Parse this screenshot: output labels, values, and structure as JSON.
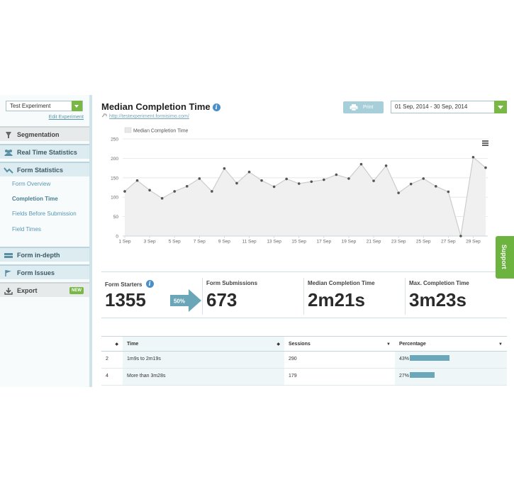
{
  "sidebar": {
    "experiment_select": "Test Experiment",
    "edit_link": "Edit Experiment",
    "items": [
      {
        "label": "Segmentation"
      },
      {
        "label": "Real Time Statistics"
      },
      {
        "label": "Form Statistics"
      },
      {
        "label": "Form in-depth"
      },
      {
        "label": "Form Issues"
      },
      {
        "label": "Export",
        "badge": "NEW"
      }
    ],
    "sub_items": [
      "Form Overview",
      "Completion Time",
      "Fields Before Submission",
      "Field Times"
    ]
  },
  "header": {
    "title": "Median Completion Time",
    "url": "http://testexperiment.formisimo.com/",
    "print_label": "Print",
    "date_range": "01 Sep, 2014 - 30 Sep, 2014"
  },
  "chart_data": {
    "type": "area",
    "legend": [
      "Median Completion Time"
    ],
    "series": [
      {
        "name": "Median Completion Time",
        "values": [
          115,
          143,
          118,
          97,
          115,
          128,
          148,
          115,
          174,
          136,
          165,
          143,
          127,
          147,
          135,
          140,
          145,
          158,
          148,
          185,
          142,
          181,
          111,
          134,
          148,
          128,
          114,
          0,
          203,
          176
        ]
      }
    ],
    "x_tick_labels": [
      "1 Sep",
      "3 Sep",
      "5 Sep",
      "7 Sep",
      "9 Sep",
      "11 Sep",
      "13 Sep",
      "15 Sep",
      "17 Sep",
      "19 Sep",
      "21 Sep",
      "23 Sep",
      "25 Sep",
      "27 Sep",
      "29 Sep"
    ],
    "y_ticks": [
      0,
      50,
      100,
      150,
      200,
      250
    ],
    "ylim": [
      0,
      250
    ],
    "grid": true,
    "legend_position": "top-left",
    "color": "#cccccc"
  },
  "stats": {
    "starters_label": "Form Starters",
    "starters_value": "1355",
    "conversion": "50%",
    "submissions_label": "Form Submissions",
    "submissions_value": "673",
    "median_label": "Median Completion Time",
    "median_value": "2m21s",
    "max_label": "Max. Completion Time",
    "max_value": "3m23s"
  },
  "support_label": "Support",
  "table": {
    "headers": {
      "time": "Time",
      "sessions": "Sessions",
      "percentage": "Percentage"
    },
    "rows": [
      {
        "rank": "2",
        "time": "1m9s to 2m19s",
        "sessions": "290",
        "percentage": "43%",
        "pct_value": 43
      },
      {
        "rank": "4",
        "time": "More than 3m28s",
        "sessions": "179",
        "percentage": "27%",
        "pct_value": 27
      }
    ]
  },
  "colors": {
    "accent_green": "#7ab845",
    "accent_blue": "#6ba7ba",
    "arrow": "#6aa6b8"
  }
}
